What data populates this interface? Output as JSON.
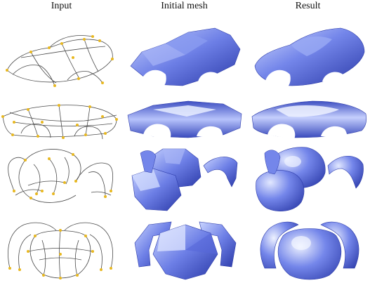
{
  "columns": [
    "Input",
    "Initial mesh",
    "Result"
  ],
  "rows": [
    {
      "model": "car-side-view"
    },
    {
      "model": "car-front-view"
    },
    {
      "model": "elephant-head-three-quarter"
    },
    {
      "model": "elephant-head-front"
    }
  ],
  "colors": {
    "curve": "#4a4a4a",
    "control_point": "#e8b820",
    "mesh_light": "#c9d4ff",
    "mesh_mid": "#6d7fe6",
    "mesh_dark": "#2b3aa8"
  },
  "icons": {
    "control-point": "yellow-dot",
    "mesh-shading": "blue-gradient"
  }
}
